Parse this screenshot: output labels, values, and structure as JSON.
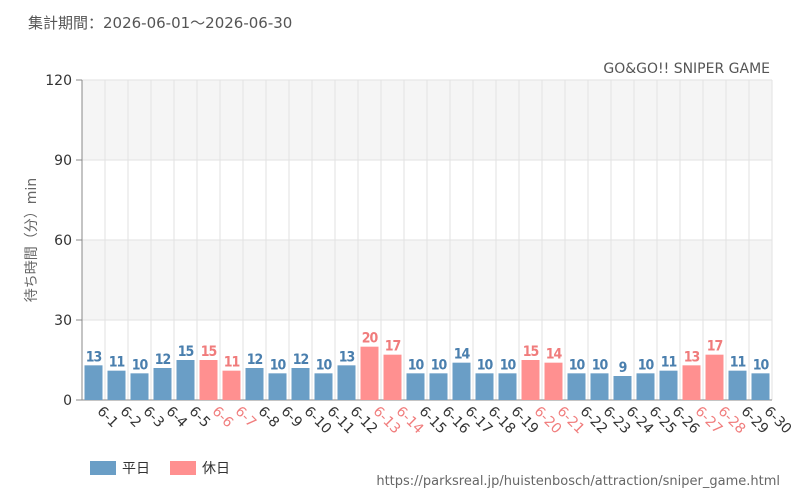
{
  "header": {
    "period": "集計期間：2026-06-01～2026-06-30",
    "game_title": "GO&GO!! SNIPER GAME"
  },
  "source_url": "https://parksreal.jp/huistenbosch/attraction/sniper_game.html",
  "legend": [
    {
      "label": "平日",
      "color": "#6a9ec6"
    },
    {
      "label": "休日",
      "color": "#ff9090"
    }
  ],
  "colors": {
    "weekday": "#6a9ec6",
    "holiday": "#ff9090",
    "weekday_label": "#4a7fae",
    "holiday_label": "#f07c7c",
    "band": "#f5f5f5"
  },
  "chart_data": {
    "type": "bar",
    "ylabel": "待ち時間（分）min",
    "ylim": [
      0,
      120
    ],
    "yticks": [
      0,
      30,
      60,
      90,
      120
    ],
    "grid": true,
    "legend_placement": "bottom-left",
    "categories": [
      "6-1",
      "6-2",
      "6-3",
      "6-4",
      "6-5",
      "6-6",
      "6-7",
      "6-8",
      "6-9",
      "6-10",
      "6-11",
      "6-12",
      "6-13",
      "6-14",
      "6-15",
      "6-16",
      "6-17",
      "6-18",
      "6-19",
      "6-20",
      "6-21",
      "6-22",
      "6-23",
      "6-24",
      "6-25",
      "6-26",
      "6-27",
      "6-28",
      "6-29",
      "6-30"
    ],
    "values": [
      13,
      11,
      10,
      12,
      15,
      15,
      11,
      12,
      10,
      12,
      10,
      13,
      20,
      17,
      10,
      10,
      14,
      10,
      10,
      15,
      14,
      10,
      10,
      9,
      10,
      11,
      13,
      17,
      11,
      10
    ],
    "holiday": [
      false,
      false,
      false,
      false,
      false,
      true,
      true,
      false,
      false,
      false,
      false,
      false,
      true,
      true,
      false,
      false,
      false,
      false,
      false,
      true,
      true,
      false,
      false,
      false,
      false,
      false,
      true,
      true,
      false,
      false
    ]
  }
}
